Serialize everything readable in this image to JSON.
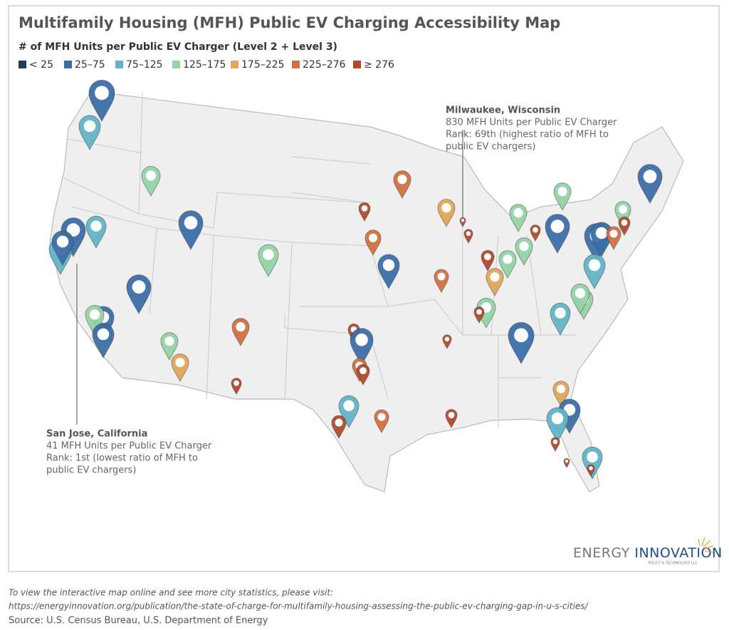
{
  "header": {
    "title": "Multifamily Housing (MFH) Public EV Charging Accessibility Map",
    "subtitle": "# of MFH Units per Public EV Charger (Level 2 + Level 3)"
  },
  "legend": [
    {
      "label": "< 25",
      "color": "#1f3b5c"
    },
    {
      "label": "25–75",
      "color": "#3b6ea6"
    },
    {
      "label": "75–125",
      "color": "#62b3c7"
    },
    {
      "label": "125–175",
      "color": "#93d3a6"
    },
    {
      "label": "175–225",
      "color": "#e2a65a"
    },
    {
      "label": "225–276",
      "color": "#d3703f"
    },
    {
      "label": "≥ 276",
      "color": "#b2492a"
    }
  ],
  "annotations": [
    {
      "name": "Milwaukee, Wisconsin",
      "lines": [
        "830 MFH Units per Public EV Charger",
        "Rank: 69th (highest ratio of MFH to",
        "public EV chargers)"
      ]
    },
    {
      "name": "San Jose, California",
      "lines": [
        "41 MFH Units per Public EV Charger",
        "Rank: 1st (lowest ratio of MFH to",
        "public EV chargers)"
      ]
    }
  ],
  "logo": {
    "name_a": "ENERGY",
    "name_b": "INNOVATION",
    "tagline": "POLICY & TECHNOLOGY LLC"
  },
  "footer": {
    "note": "To view the interactive map online and see more city statistics, please visit:",
    "url": "https://energyinnovation.org/publication/the-state-of-charge-for-multifamily-housing-assessing-the-public-ev-charging-gap-in-u-s-cities/",
    "source": "Source: U.S. Census Bureau, U.S. Department of Energy"
  }
}
